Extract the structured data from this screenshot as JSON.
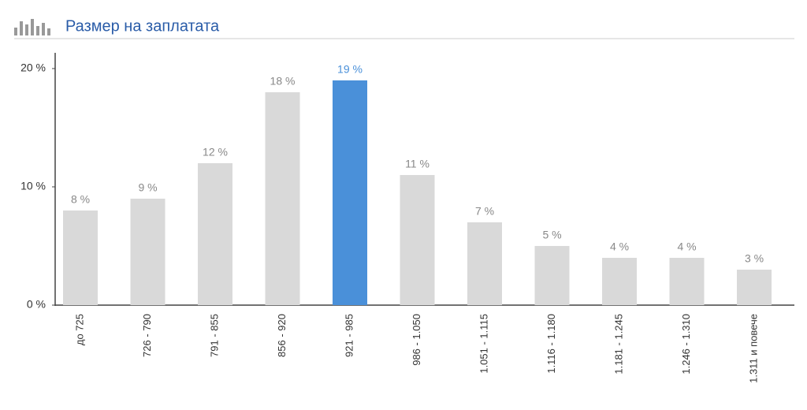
{
  "chart_data": {
    "type": "bar",
    "title": "Размер на заплатата",
    "categories": [
      "до 725",
      "726 - 790",
      "791 - 855",
      "856 - 920",
      "921 - 985",
      "986 - 1.050",
      "1.051 - 1.115",
      "1.116 - 1.180",
      "1.181 - 1.245",
      "1.246 - 1.310",
      "1.311 и повече"
    ],
    "values": [
      8,
      9,
      12,
      18,
      19,
      11,
      7,
      5,
      4,
      4,
      3
    ],
    "value_labels": [
      "8 %",
      "9 %",
      "12 %",
      "18 %",
      "19 %",
      "11 %",
      "7 %",
      "5 %",
      "4 %",
      "4 %",
      "3 %"
    ],
    "colors": [
      "#d9d9d9",
      "#d9d9d9",
      "#d9d9d9",
      "#d9d9d9",
      "#4a90d9",
      "#d9d9d9",
      "#d9d9d9",
      "#d9d9d9",
      "#d9d9d9",
      "#d9d9d9",
      "#d9d9d9"
    ],
    "value_label_colors": [
      "#888888",
      "#888888",
      "#888888",
      "#888888",
      "#4a90d9",
      "#888888",
      "#888888",
      "#888888",
      "#888888",
      "#888888",
      "#888888"
    ],
    "ylim": [
      0,
      21.33
    ],
    "yticks": [
      {
        "value": 0,
        "label": "0 %"
      },
      {
        "value": 10,
        "label": "10 %"
      },
      {
        "value": 20,
        "label": "20 %"
      }
    ]
  }
}
